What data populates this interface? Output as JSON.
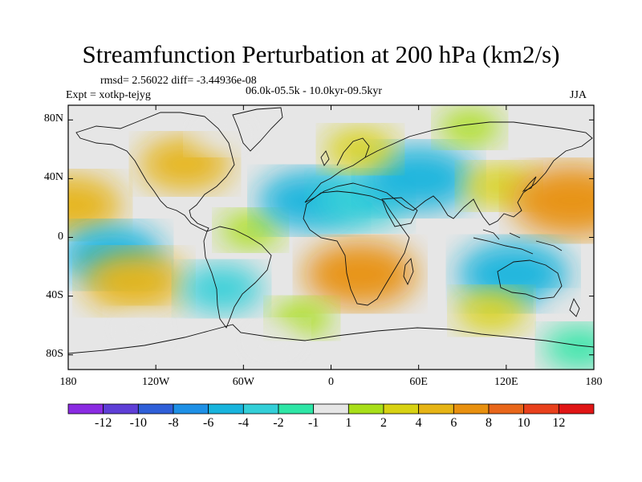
{
  "title": "Streamfunction Perturbation at 200 hPa (km2/s)",
  "stats": "rmsd= 2.56022 diff= -3.44936e-08",
  "experiment": "Expt = xotkp-tejyg",
  "period": "06.0k-05.5k - 10.0kyr-09.5kyr",
  "season": "JJA",
  "chart_data": {
    "type": "heatmap",
    "variable": "Streamfunction Perturbation",
    "level": "200 hPa",
    "units": "km2/s",
    "x_ticks": [
      "180",
      "120W",
      "60W",
      "0",
      "60E",
      "120E",
      "180"
    ],
    "y_ticks": [
      "80N",
      "40N",
      "0",
      "40S",
      "80S"
    ],
    "xlim": [
      -180,
      180
    ],
    "ylim": [
      -90,
      90
    ],
    "colorbar": {
      "labels": [
        "-12",
        "-10",
        "-8",
        "-6",
        "-4",
        "-2",
        "-1",
        "1",
        "2",
        "4",
        "6",
        "8",
        "10",
        "12"
      ],
      "colors": [
        "#8a2be2",
        "#5e3ed6",
        "#2f5fd8",
        "#1e90e6",
        "#18b4dd",
        "#33cfd8",
        "#2ee6a6",
        "#e6e6e6",
        "#a8df19",
        "#d8d213",
        "#e6b415",
        "#e8900f",
        "#e8661a",
        "#e8401c",
        "#e01515"
      ]
    },
    "anomalies": [
      {
        "lon": -178,
        "lat": 22,
        "value": 5
      },
      {
        "lon": -150,
        "lat": -12,
        "value": -5
      },
      {
        "lon": -135,
        "lat": -30,
        "value": 5
      },
      {
        "lon": -100,
        "lat": 50,
        "value": 4
      },
      {
        "lon": -75,
        "lat": 70,
        "value": -1
      },
      {
        "lon": -130,
        "lat": -62,
        "value": -1
      },
      {
        "lon": -55,
        "lat": 5,
        "value": 1
      },
      {
        "lon": -15,
        "lat": 25,
        "value": -5
      },
      {
        "lon": 20,
        "lat": 25,
        "value": -4
      },
      {
        "lon": 60,
        "lat": 40,
        "value": -6
      },
      {
        "lon": 20,
        "lat": 60,
        "value": 2
      },
      {
        "lon": 95,
        "lat": 75,
        "value": 1
      },
      {
        "lon": 20,
        "lat": -25,
        "value": 6
      },
      {
        "lon": -75,
        "lat": -35,
        "value": -3
      },
      {
        "lon": -20,
        "lat": -55,
        "value": 1
      },
      {
        "lon": 115,
        "lat": 35,
        "value": 2
      },
      {
        "lon": 165,
        "lat": 25,
        "value": 7
      },
      {
        "lon": 125,
        "lat": -25,
        "value": -6
      },
      {
        "lon": 110,
        "lat": -50,
        "value": 2
      },
      {
        "lon": 165,
        "lat": -50,
        "value": -1
      },
      {
        "lon": 170,
        "lat": -75,
        "value": -2
      },
      {
        "lon": -40,
        "lat": -70,
        "value": -1
      }
    ]
  }
}
